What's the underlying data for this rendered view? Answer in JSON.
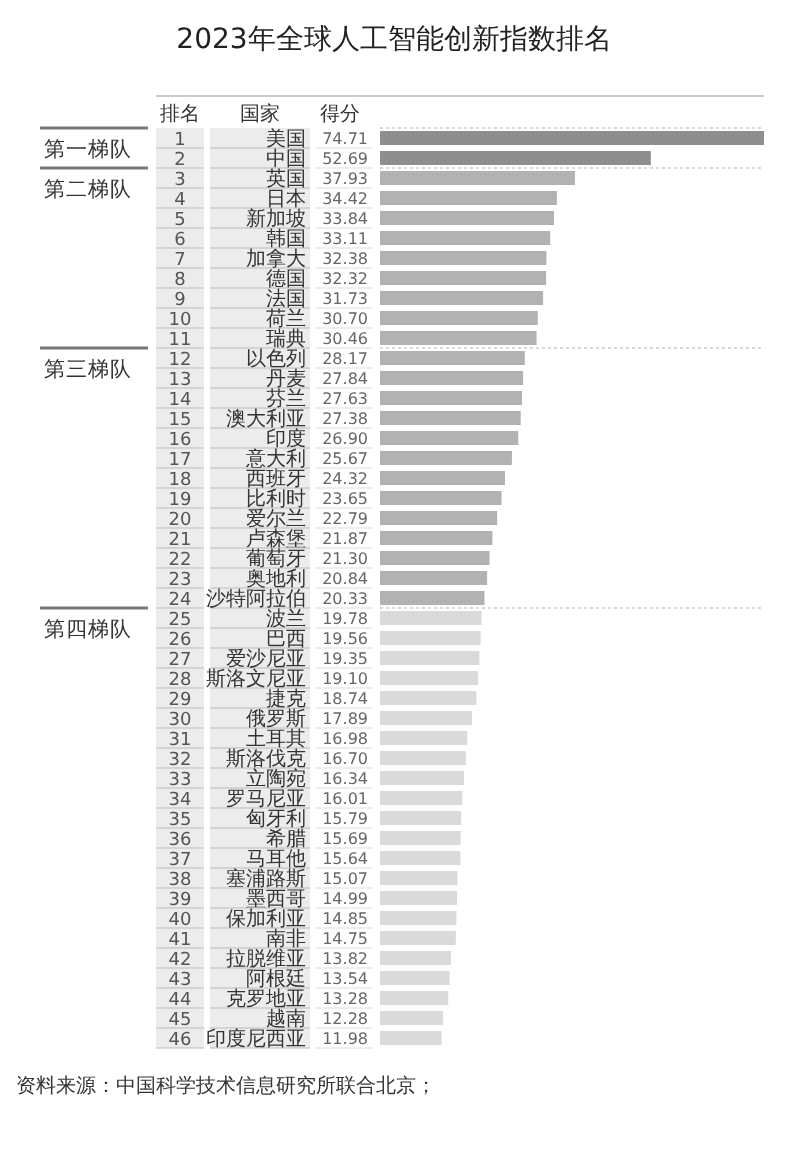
{
  "chart_data": {
    "type": "bar",
    "orientation": "horizontal",
    "title": "2023年全球人工智能创新指数排名",
    "xlabel": "得分",
    "ylabel": "国家",
    "categories": [
      "美国",
      "中国",
      "英国",
      "日本",
      "新加坡",
      "韩国",
      "加拿大",
      "德国",
      "法国",
      "荷兰",
      "瑞典",
      "以色列",
      "丹麦",
      "芬兰",
      "澳大利亚",
      "印度",
      "意大利",
      "西班牙",
      "比利时",
      "爱尔兰",
      "卢森堡",
      "葡萄牙",
      "奥地利",
      "沙特阿拉伯",
      "波兰",
      "巴西",
      "爱沙尼亚",
      "斯洛文尼亚",
      "捷克",
      "俄罗斯",
      "土耳其",
      "斯洛伐克",
      "立陶宛",
      "罗马尼亚",
      "匈牙利",
      "希腊",
      "马耳他",
      "塞浦路斯",
      "墨西哥",
      "保加利亚",
      "南非",
      "拉脱维亚",
      "阿根廷",
      "克罗地亚",
      "越南",
      "印度尼西亚"
    ],
    "values": [
      74.71,
      52.69,
      37.93,
      34.42,
      33.84,
      33.11,
      32.38,
      32.32,
      31.73,
      30.7,
      30.46,
      28.17,
      27.84,
      27.63,
      27.38,
      26.9,
      25.67,
      24.32,
      23.65,
      22.79,
      21.87,
      21.3,
      20.84,
      20.33,
      19.78,
      19.56,
      19.35,
      19.1,
      18.74,
      17.89,
      16.98,
      16.7,
      16.34,
      16.01,
      15.79,
      15.69,
      15.64,
      15.07,
      14.99,
      14.85,
      14.75,
      13.82,
      13.54,
      13.28,
      12.28,
      11.98
    ],
    "value_labels": [
      "74.71",
      "52.69",
      "37.93",
      "34.42",
      "33.84",
      "33.11",
      "32.38",
      "32.32",
      "31.73",
      "30.70",
      "30.46",
      "28.17",
      "27.84",
      "27.63",
      "27.38",
      "26.90",
      "25.67",
      "24.32",
      "23.65",
      "22.79",
      "21.87",
      "21.30",
      "20.84",
      "20.33",
      "19.78",
      "19.56",
      "19.35",
      "19.10",
      "18.74",
      "17.89",
      "16.98",
      "16.70",
      "16.34",
      "16.01",
      "15.79",
      "15.69",
      "15.64",
      "15.07",
      "14.99",
      "14.85",
      "14.75",
      "13.82",
      "13.54",
      "13.28",
      "12.28",
      "11.98"
    ],
    "colors": [
      "#8e8e8e",
      "#8e8e8e",
      "#b2b2b2",
      "#b2b2b2",
      "#b2b2b2",
      "#b2b2b2",
      "#b2b2b2",
      "#b2b2b2",
      "#b2b2b2",
      "#b2b2b2",
      "#b2b2b2",
      "#b2b2b2",
      "#b2b2b2",
      "#b2b2b2",
      "#b2b2b2",
      "#b2b2b2",
      "#b2b2b2",
      "#b2b2b2",
      "#b2b2b2",
      "#b2b2b2",
      "#b2b2b2",
      "#b2b2b2",
      "#b2b2b2",
      "#b2b2b2",
      "#dadada",
      "#dadada",
      "#dadada",
      "#dadada",
      "#dadada",
      "#dadada",
      "#dadada",
      "#dadada",
      "#dadada",
      "#dadada",
      "#dadada",
      "#dadada",
      "#dadada",
      "#dadada",
      "#dadada",
      "#dadada",
      "#dadada",
      "#dadada",
      "#dadada",
      "#dadada",
      "#dadada",
      "#dadada"
    ],
    "ref_lines": [
      {
        "axis": "y",
        "value": "美国",
        "label": "第一梯队"
      },
      {
        "axis": "y",
        "value": "英国",
        "label": "第二梯队"
      },
      {
        "axis": "y",
        "value": "以色列",
        "label": "第三梯队"
      },
      {
        "axis": "y",
        "value": "波兰",
        "label": "第四梯队"
      }
    ],
    "annotations": [
      "排名",
      "1",
      "2",
      "3",
      "4",
      "5",
      "6",
      "7",
      "8",
      "9",
      "10",
      "11",
      "12",
      "13",
      "14",
      "15",
      "16",
      "17",
      "18",
      "19",
      "20",
      "21",
      "22",
      "23",
      "24",
      "25",
      "26",
      "27",
      "28",
      "29",
      "30",
      "31",
      "32",
      "33",
      "34",
      "35",
      "36",
      "37",
      "38",
      "39",
      "40",
      "41",
      "42",
      "43",
      "44",
      "45",
      "46",
      "资料来源：中国科学技术信息研究所联合北京；"
    ]
  }
}
